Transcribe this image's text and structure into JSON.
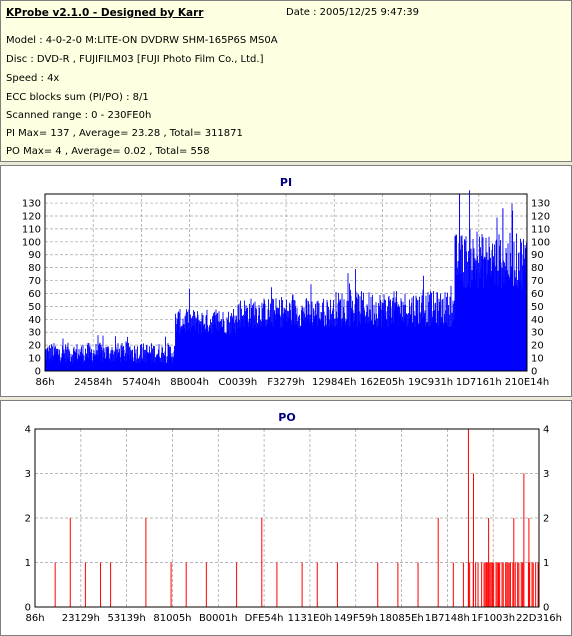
{
  "info": {
    "title": "KProbe v2.1.0 - Designed by Karr",
    "date": "Date : 2005/12/25 9:47:39",
    "lines": [
      "Model : 4-0-2-0 M:LITE-ON DVDRW SHM-165P6S MS0A",
      "Disc : DVD-R , FUJIFILM03 [FUJI Photo Film Co., Ltd.]",
      "Speed : 4x",
      "ECC blocks sum (PI/PO) : 8/1",
      "Scanned range : 0 - 230FE0h",
      "PI Max= 137 , Average= 23.28 , Total= 311871",
      "PO Max= 4 , Average= 0.02 , Total= 558"
    ]
  },
  "chart_data": [
    {
      "type": "bar",
      "title": "PI",
      "color": "#0000ff",
      "ylim": [
        0,
        137
      ],
      "yticks": [
        0,
        10,
        20,
        30,
        40,
        50,
        60,
        70,
        80,
        90,
        100,
        110,
        120,
        130
      ],
      "xticks": [
        "86h",
        "24584h",
        "57404h",
        "8B004h",
        "C0039h",
        "F3279h",
        "12984Eh",
        "162E05h",
        "19C931h",
        "1D7161h",
        "210E14h"
      ],
      "grid": true,
      "segments": [
        {
          "range_pct": [
            0,
            27
          ],
          "base": 14,
          "spread": 8
        },
        {
          "range_pct": [
            27,
            40
          ],
          "base": 38,
          "spread": 10
        },
        {
          "range_pct": [
            40,
            60
          ],
          "base": 45,
          "spread": 12
        },
        {
          "range_pct": [
            60,
            85
          ],
          "base": 48,
          "spread": 14
        },
        {
          "range_pct": [
            85,
            100
          ],
          "base": 85,
          "spread": 22
        }
      ],
      "peaks": [
        {
          "pct": 86,
          "value": 137
        },
        {
          "pct": 95,
          "value": 126
        },
        {
          "pct": 97,
          "value": 124
        }
      ]
    },
    {
      "type": "bar",
      "title": "PO",
      "color": "#ff0000",
      "ylim": [
        0,
        4
      ],
      "yticks": [
        0,
        1,
        2,
        3,
        4
      ],
      "xticks": [
        "86h",
        "23129h",
        "53139h",
        "81005h",
        "B0001h",
        "DFE54h",
        "1131E0h",
        "149F59h",
        "18085Eh",
        "1B7148h",
        "1F1003h",
        "22D316h"
      ],
      "grid": true,
      "spikes": [
        {
          "pct": 4,
          "value": 1
        },
        {
          "pct": 7,
          "value": 2
        },
        {
          "pct": 10,
          "value": 1
        },
        {
          "pct": 13,
          "value": 1
        },
        {
          "pct": 15,
          "value": 1
        },
        {
          "pct": 22,
          "value": 2
        },
        {
          "pct": 27,
          "value": 1
        },
        {
          "pct": 30,
          "value": 1
        },
        {
          "pct": 34,
          "value": 1
        },
        {
          "pct": 40,
          "value": 1
        },
        {
          "pct": 45,
          "value": 2
        },
        {
          "pct": 48,
          "value": 1
        },
        {
          "pct": 53,
          "value": 1
        },
        {
          "pct": 56,
          "value": 1
        },
        {
          "pct": 60,
          "value": 1
        },
        {
          "pct": 68,
          "value": 1
        },
        {
          "pct": 72,
          "value": 1
        },
        {
          "pct": 76,
          "value": 1
        },
        {
          "pct": 80,
          "value": 2
        },
        {
          "pct": 83,
          "value": 1
        },
        {
          "pct": 85,
          "value": 1
        },
        {
          "pct": 86,
          "value": 4
        },
        {
          "pct": 87,
          "value": 3
        },
        {
          "pct": 90,
          "value": 2
        },
        {
          "pct": 92,
          "value": 1
        },
        {
          "pct": 95,
          "value": 2
        },
        {
          "pct": 97,
          "value": 3
        },
        {
          "pct": 98,
          "value": 2
        }
      ]
    }
  ]
}
